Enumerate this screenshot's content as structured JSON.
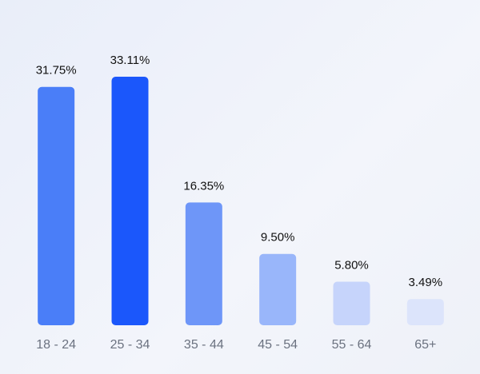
{
  "chart_data": {
    "type": "bar",
    "categories": [
      "18 - 24",
      "25 - 34",
      "35 - 44",
      "45 - 54",
      "55 - 64",
      "65+"
    ],
    "values": [
      31.75,
      33.11,
      16.35,
      9.5,
      5.8,
      3.49
    ],
    "value_labels": [
      "31.75%",
      "33.11%",
      "16.35%",
      "9.50%",
      "5.80%",
      "3.49%"
    ],
    "colors": [
      "#4a7ef8",
      "#1b57fb",
      "#6e96f8",
      "#99b6fa",
      "#c6d4fb",
      "#dce4fb"
    ]
  }
}
